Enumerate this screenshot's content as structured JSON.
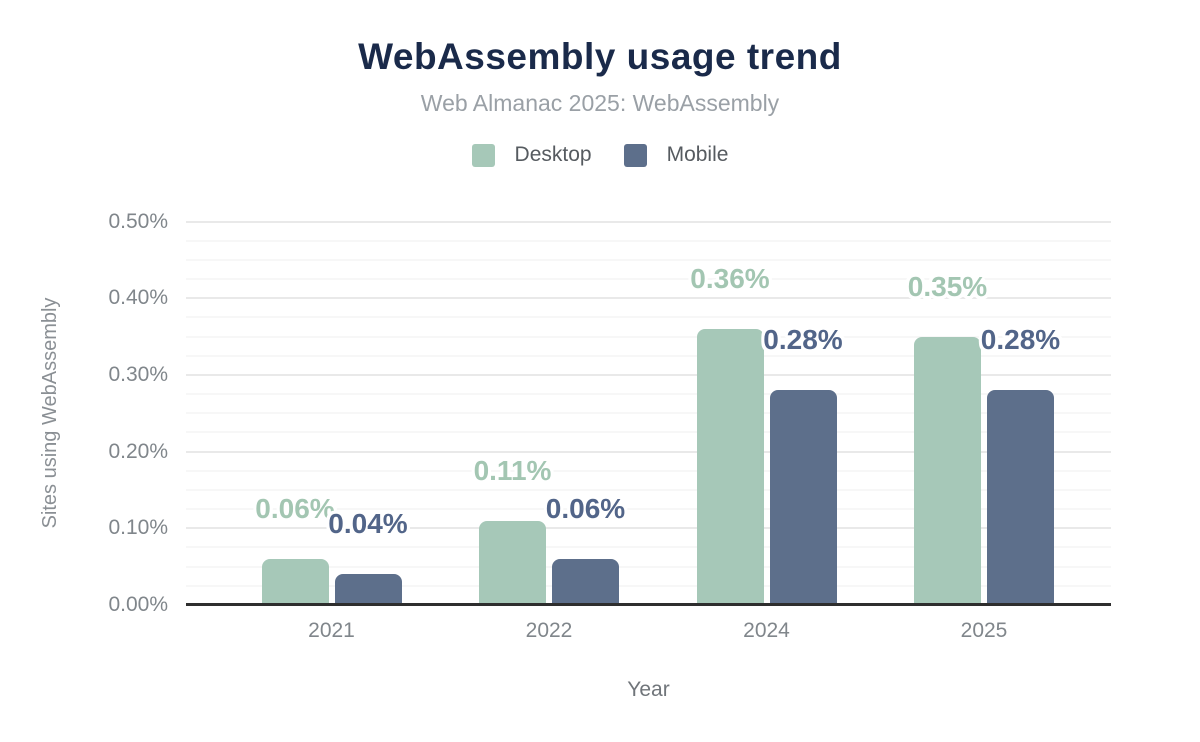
{
  "header": {
    "title": "WebAssembly usage trend",
    "subtitle": "Web Almanac 2025: WebAssembly"
  },
  "chart_data": {
    "type": "bar",
    "title": "WebAssembly usage trend",
    "subtitle": "Web Almanac 2025: WebAssembly",
    "categories": [
      "2021",
      "2022",
      "2024",
      "2025"
    ],
    "series": [
      {
        "name": "Desktop",
        "bar_color": "#a6c8b8",
        "label_color": "#a3c6b2",
        "values": [
          0.06,
          0.11,
          0.36,
          0.35
        ],
        "labels": [
          "0.06%",
          "0.11%",
          "0.36%",
          "0.35%"
        ]
      },
      {
        "name": "Mobile",
        "bar_color": "#5d6f8b",
        "label_color": "#526589",
        "values": [
          0.04,
          0.06,
          0.28,
          0.28
        ],
        "labels": [
          "0.04%",
          "0.06%",
          "0.28%",
          "0.28%"
        ]
      }
    ],
    "xlabel": "Year",
    "ylabel": "Sites using WebAssembly",
    "ylim": [
      0,
      0.5
    ],
    "yticks": [
      "0.00%",
      "0.10%",
      "0.20%",
      "0.30%",
      "0.40%",
      "0.50%"
    ],
    "grid": {
      "major": 0.1,
      "minor": 0.025,
      "on": true
    },
    "legend_position": "top",
    "value_labels": "outside-end, bold, white halo"
  },
  "colors": {
    "title": "#1a2a4a",
    "subtitle": "#9aa0a6",
    "axis_line": "#2e2e2e",
    "gridline_major": "#e9e9e9",
    "gridline_minor": "#f7f7f7",
    "tick_text": "#80868b",
    "legend_text": "#565b60",
    "background": "#ffffff"
  }
}
